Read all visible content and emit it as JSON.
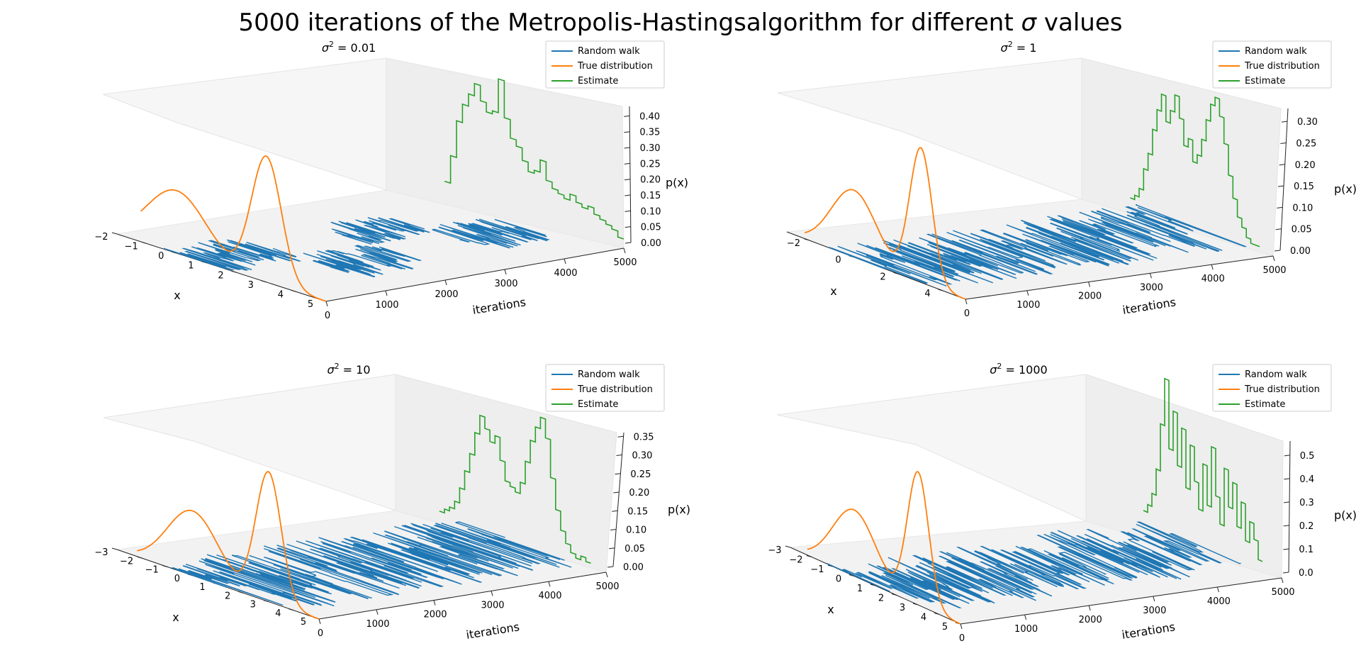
{
  "figure": {
    "title_prefix": "5000 iterations of the Metropolis-Hastingsalgorithm for different ",
    "title_symbol": "σ",
    "title_suffix": " values"
  },
  "colors": {
    "random_walk": "#1f77b4",
    "true_distribution": "#ff7f0e",
    "estimate": "#2ca02c"
  },
  "chart_data": [
    {
      "type": "line",
      "title_base": "σ",
      "title_sup": "2",
      "title_value": " = 0.01",
      "xlabel": "x",
      "ylabel": "iterations",
      "zlabel": "p(x)",
      "xlim": [
        -2,
        5
      ],
      "ylim": [
        0,
        5000
      ],
      "zlim": [
        0,
        0.43
      ],
      "xticks": [
        "−2",
        "−1",
        "0",
        "1",
        "2",
        "3",
        "4",
        "5"
      ],
      "yticks": [
        "0",
        "1000",
        "2000",
        "3000",
        "4000",
        "5000"
      ],
      "zticks": [
        "0.00",
        "0.05",
        "0.10",
        "0.15",
        "0.20",
        "0.25",
        "0.30",
        "0.35",
        "0.40"
      ],
      "legend": [
        "Random walk",
        "True distribution",
        "Estimate"
      ],
      "legend_position": "top-right",
      "walk": [
        {
          "iterations": [
            0,
            1200
          ],
          "x_range": [
            -0.5,
            2.0
          ]
        },
        {
          "iterations": [
            1200,
            2400
          ],
          "x_range": [
            1.5,
            4.0
          ]
        },
        {
          "iterations": [
            2400,
            3500
          ],
          "x_range": [
            -0.3,
            1.8
          ]
        },
        {
          "iterations": [
            3500,
            4600
          ],
          "x_range": [
            1.2,
            3.8
          ]
        }
      ],
      "estimate": {
        "x": [
          -1.0,
          -0.8,
          -0.6,
          -0.4,
          -0.2,
          0.0,
          0.2,
          0.4,
          0.6,
          0.8,
          1.0,
          1.2,
          1.4,
          1.6,
          1.8,
          2.0,
          2.2,
          2.4,
          2.6,
          2.8,
          3.0,
          3.2,
          3.4,
          3.6,
          3.8,
          4.0,
          4.2,
          4.4,
          4.6,
          4.8
        ],
        "p": [
          0.03,
          0.12,
          0.24,
          0.3,
          0.34,
          0.38,
          0.33,
          0.3,
          0.31,
          0.42,
          0.3,
          0.24,
          0.22,
          0.18,
          0.15,
          0.16,
          0.2,
          0.14,
          0.12,
          0.11,
          0.1,
          0.12,
          0.1,
          0.09,
          0.1,
          0.08,
          0.07,
          0.06,
          0.05,
          0.03
        ]
      }
    },
    {
      "type": "line",
      "title_base": "σ",
      "title_sup": "2",
      "title_value": " = 1",
      "xlabel": "x",
      "ylabel": "iterations",
      "zlabel": "p(x)",
      "xlim": [
        -3,
        5
      ],
      "ylim": [
        0,
        5000
      ],
      "zlim": [
        0,
        0.33
      ],
      "xticks": [
        "−2",
        "0",
        "2",
        "4"
      ],
      "xtick_values": [
        -2,
        0,
        2,
        4
      ],
      "yticks": [
        "0",
        "1000",
        "2000",
        "3000",
        "4000",
        "5000"
      ],
      "zticks": [
        "0.00",
        "0.05",
        "0.10",
        "0.15",
        "0.20",
        "0.25",
        "0.30"
      ],
      "legend": [
        "Random walk",
        "True distribution",
        "Estimate"
      ],
      "legend_position": "top-right",
      "walk": [
        {
          "iterations": [
            0,
            5000
          ],
          "x_range": [
            -1.2,
            4.0
          ]
        }
      ],
      "estimate": {
        "x": [
          -1.4,
          -1.2,
          -1.0,
          -0.8,
          -0.6,
          -0.4,
          -0.2,
          0.0,
          0.2,
          0.4,
          0.6,
          0.8,
          1.0,
          1.2,
          1.4,
          1.6,
          1.8,
          2.0,
          2.2,
          2.4,
          2.6,
          2.8,
          3.0,
          3.2,
          3.4,
          3.6,
          3.8,
          4.0,
          4.2
        ],
        "p": [
          0.01,
          0.02,
          0.04,
          0.09,
          0.13,
          0.19,
          0.24,
          0.28,
          0.22,
          0.25,
          0.29,
          0.24,
          0.18,
          0.2,
          0.15,
          0.17,
          0.21,
          0.26,
          0.3,
          0.32,
          0.28,
          0.22,
          0.15,
          0.1,
          0.06,
          0.04,
          0.02,
          0.01,
          0.01
        ]
      }
    },
    {
      "type": "line",
      "title_base": "σ",
      "title_sup": "2",
      "title_value": " = 10",
      "xlabel": "x",
      "ylabel": "iterations",
      "zlabel": "p(x)",
      "xlim": [
        -3,
        5
      ],
      "ylim": [
        0,
        5000
      ],
      "zlim": [
        0,
        0.36
      ],
      "xticks": [
        "−3",
        "−2",
        "−1",
        "0",
        "1",
        "2",
        "3",
        "4",
        "5"
      ],
      "yticks": [
        "0",
        "1000",
        "2000",
        "3000",
        "4000",
        "5000"
      ],
      "zticks": [
        "0.00",
        "0.05",
        "0.10",
        "0.15",
        "0.20",
        "0.25",
        "0.30",
        "0.35"
      ],
      "legend": [
        "Random walk",
        "True distribution",
        "Estimate"
      ],
      "legend_position": "top-right",
      "walk": [
        {
          "iterations": [
            0,
            5000
          ],
          "x_range": [
            -1.5,
            4.2
          ]
        }
      ],
      "estimate": {
        "x": [
          -1.6,
          -1.4,
          -1.2,
          -1.0,
          -0.8,
          -0.6,
          -0.4,
          -0.2,
          0.0,
          0.2,
          0.4,
          0.6,
          0.8,
          1.0,
          1.2,
          1.4,
          1.6,
          1.8,
          2.0,
          2.2,
          2.4,
          2.6,
          2.8,
          3.0,
          3.2,
          3.4,
          3.6,
          3.8,
          4.0,
          4.2
        ],
        "p": [
          0.01,
          0.02,
          0.03,
          0.05,
          0.09,
          0.14,
          0.19,
          0.25,
          0.3,
          0.27,
          0.24,
          0.26,
          0.2,
          0.15,
          0.14,
          0.13,
          0.16,
          0.22,
          0.28,
          0.32,
          0.35,
          0.3,
          0.2,
          0.12,
          0.07,
          0.04,
          0.02,
          0.01,
          0.02,
          0.01
        ]
      }
    },
    {
      "type": "line",
      "title_base": "σ",
      "title_sup": "2",
      "title_value": " = 1000",
      "xlabel": "x",
      "ylabel": "iterations",
      "zlabel": "p(x)",
      "xlim": [
        -3,
        5
      ],
      "ylim": [
        0,
        5000
      ],
      "zlim": [
        0,
        0.56
      ],
      "xticks": [
        "−3",
        "−2",
        "−1",
        "0",
        "1",
        "2",
        "3",
        "4",
        "5"
      ],
      "yticks": [
        "0",
        "1000",
        "2000",
        "3000",
        "4000",
        "5000"
      ],
      "zticks": [
        "0.0",
        "0.1",
        "0.2",
        "0.3",
        "0.4",
        "0.5"
      ],
      "legend": [
        "Random walk",
        "True distribution",
        "Estimate"
      ],
      "legend_position": "top-right",
      "walk": [
        {
          "iterations": [
            0,
            1000
          ],
          "x_range": [
            -1.4,
            3.8
          ]
        },
        {
          "iterations": [
            1000,
            2000
          ],
          "x_range": [
            -1.2,
            4.0
          ]
        },
        {
          "iterations": [
            2000,
            3000
          ],
          "x_range": [
            -1.0,
            3.6
          ]
        },
        {
          "iterations": [
            3000,
            4000
          ],
          "x_range": [
            -1.3,
            4.0
          ]
        },
        {
          "iterations": [
            4000,
            4900
          ],
          "x_range": [
            -1.1,
            3.5
          ]
        }
      ],
      "estimate": {
        "x": [
          -1.5,
          -1.3,
          -1.1,
          -0.9,
          -0.7,
          -0.5,
          -0.3,
          -0.1,
          0.1,
          0.3,
          0.5,
          0.7,
          0.9,
          1.1,
          1.3,
          1.5,
          1.7,
          1.9,
          2.1,
          2.3,
          2.5,
          2.7,
          2.9,
          3.1,
          3.3,
          3.5,
          3.7,
          3.9
        ],
        "p": [
          0.02,
          0.05,
          0.1,
          0.2,
          0.38,
          0.56,
          0.3,
          0.45,
          0.25,
          0.4,
          0.18,
          0.35,
          0.22,
          0.12,
          0.3,
          0.15,
          0.38,
          0.2,
          0.1,
          0.32,
          0.18,
          0.28,
          0.12,
          0.22,
          0.08,
          0.16,
          0.1,
          0.03
        ]
      }
    }
  ]
}
